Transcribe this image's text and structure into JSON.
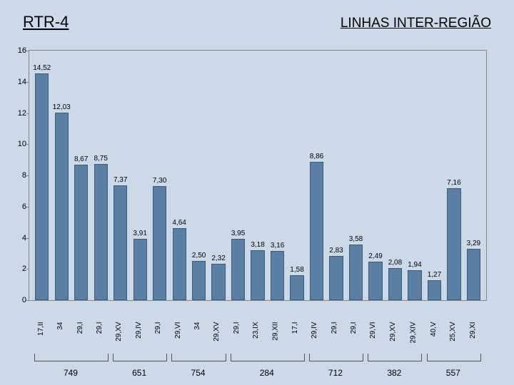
{
  "header": {
    "left": "RTR-4",
    "right": "LINHAS INTER-REGIÃO"
  },
  "chart": {
    "type": "bar",
    "ylim": [
      0,
      16
    ],
    "ytick_step": 2,
    "bar_color": "#5b7fa4",
    "bar_border": "#3c5a7a",
    "background": "#cbd9e8",
    "bars": [
      {
        "value": 14.52,
        "label": "14,52",
        "x": "17,II"
      },
      {
        "value": 12.03,
        "label": "12,03",
        "x": "34"
      },
      {
        "value": 8.67,
        "label": "8,67",
        "x": "29,I"
      },
      {
        "value": 8.75,
        "label": "8,75",
        "x": "29,I"
      },
      {
        "value": 7.37,
        "label": "7,37",
        "x": "29,XV"
      },
      {
        "value": 3.91,
        "label": "3,91",
        "x": "29,IV"
      },
      {
        "value": 7.3,
        "label": "7,30",
        "x": "29,I"
      },
      {
        "value": 4.64,
        "label": "4,64",
        "x": "29,VI"
      },
      {
        "value": 2.5,
        "label": "2,50",
        "x": "34"
      },
      {
        "value": 2.32,
        "label": "2,32",
        "x": "29,XV"
      },
      {
        "value": 3.95,
        "label": "3,95",
        "x": "29,I"
      },
      {
        "value": 3.18,
        "label": "3,18",
        "x": "23,IX"
      },
      {
        "value": 3.16,
        "label": "3,16",
        "x": "29,XII"
      },
      {
        "value": 1.58,
        "label": "1,58",
        "x": "17,I"
      },
      {
        "value": 8.86,
        "label": "8,86",
        "x": "29,IV"
      },
      {
        "value": 2.83,
        "label": "2,83",
        "x": "29,I"
      },
      {
        "value": 3.58,
        "label": "3,58",
        "x": "29,I"
      },
      {
        "value": 2.49,
        "label": "2,49",
        "x": "29,VI"
      },
      {
        "value": 2.08,
        "label": "2,08",
        "x": "29,XV"
      },
      {
        "value": 1.94,
        "label": "1,94",
        "x": "29,XIV"
      },
      {
        "value": 1.27,
        "label": "1,27",
        "x": "40,V"
      },
      {
        "value": 7.16,
        "label": "7,16",
        "x": "25,XV"
      },
      {
        "value": 3.29,
        "label": "3,29",
        "x": "29,XI"
      }
    ],
    "groups": [
      {
        "label": "749",
        "start": 0,
        "end": 3
      },
      {
        "label": "651",
        "start": 4,
        "end": 6
      },
      {
        "label": "754",
        "start": 7,
        "end": 9
      },
      {
        "label": "284",
        "start": 10,
        "end": 13
      },
      {
        "label": "712",
        "start": 14,
        "end": 16
      },
      {
        "label": "382",
        "start": 17,
        "end": 19
      },
      {
        "label": "557",
        "start": 20,
        "end": 22
      }
    ]
  }
}
